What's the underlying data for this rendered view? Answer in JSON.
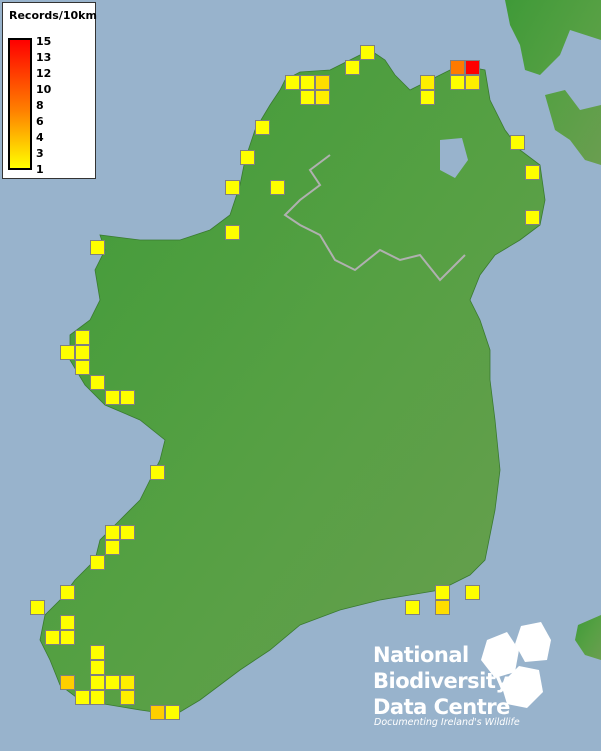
{
  "legend": {
    "title": "Records/10km",
    "ticks": [
      "15",
      "13",
      "12",
      "10",
      "8",
      "6",
      "4",
      "3",
      "1"
    ],
    "color_low": "#ffff00",
    "color_mid": "#ff8000",
    "color_high": "#ff0000"
  },
  "logo": {
    "line1": "National",
    "line2": "Biodiversity",
    "line3": "Data Centre",
    "tagline": "Documenting Ireland's Wildlife"
  },
  "colors": {
    "sea": "#98b3cc",
    "land": "#4a9a3a",
    "square_border": "#808080"
  },
  "squares_records": [
    1,
    1,
    1,
    1,
    3,
    1,
    2,
    2,
    1,
    9,
    15,
    1,
    2,
    1,
    1,
    1,
    1,
    1,
    1,
    1,
    1,
    1,
    1,
    1,
    1,
    1,
    1,
    1,
    1,
    1,
    1,
    1,
    1,
    1,
    1,
    1,
    1,
    1,
    1,
    1,
    3,
    1,
    1,
    1,
    1,
    1,
    4,
    1,
    1,
    2,
    1,
    1,
    2,
    4,
    1
  ]
}
